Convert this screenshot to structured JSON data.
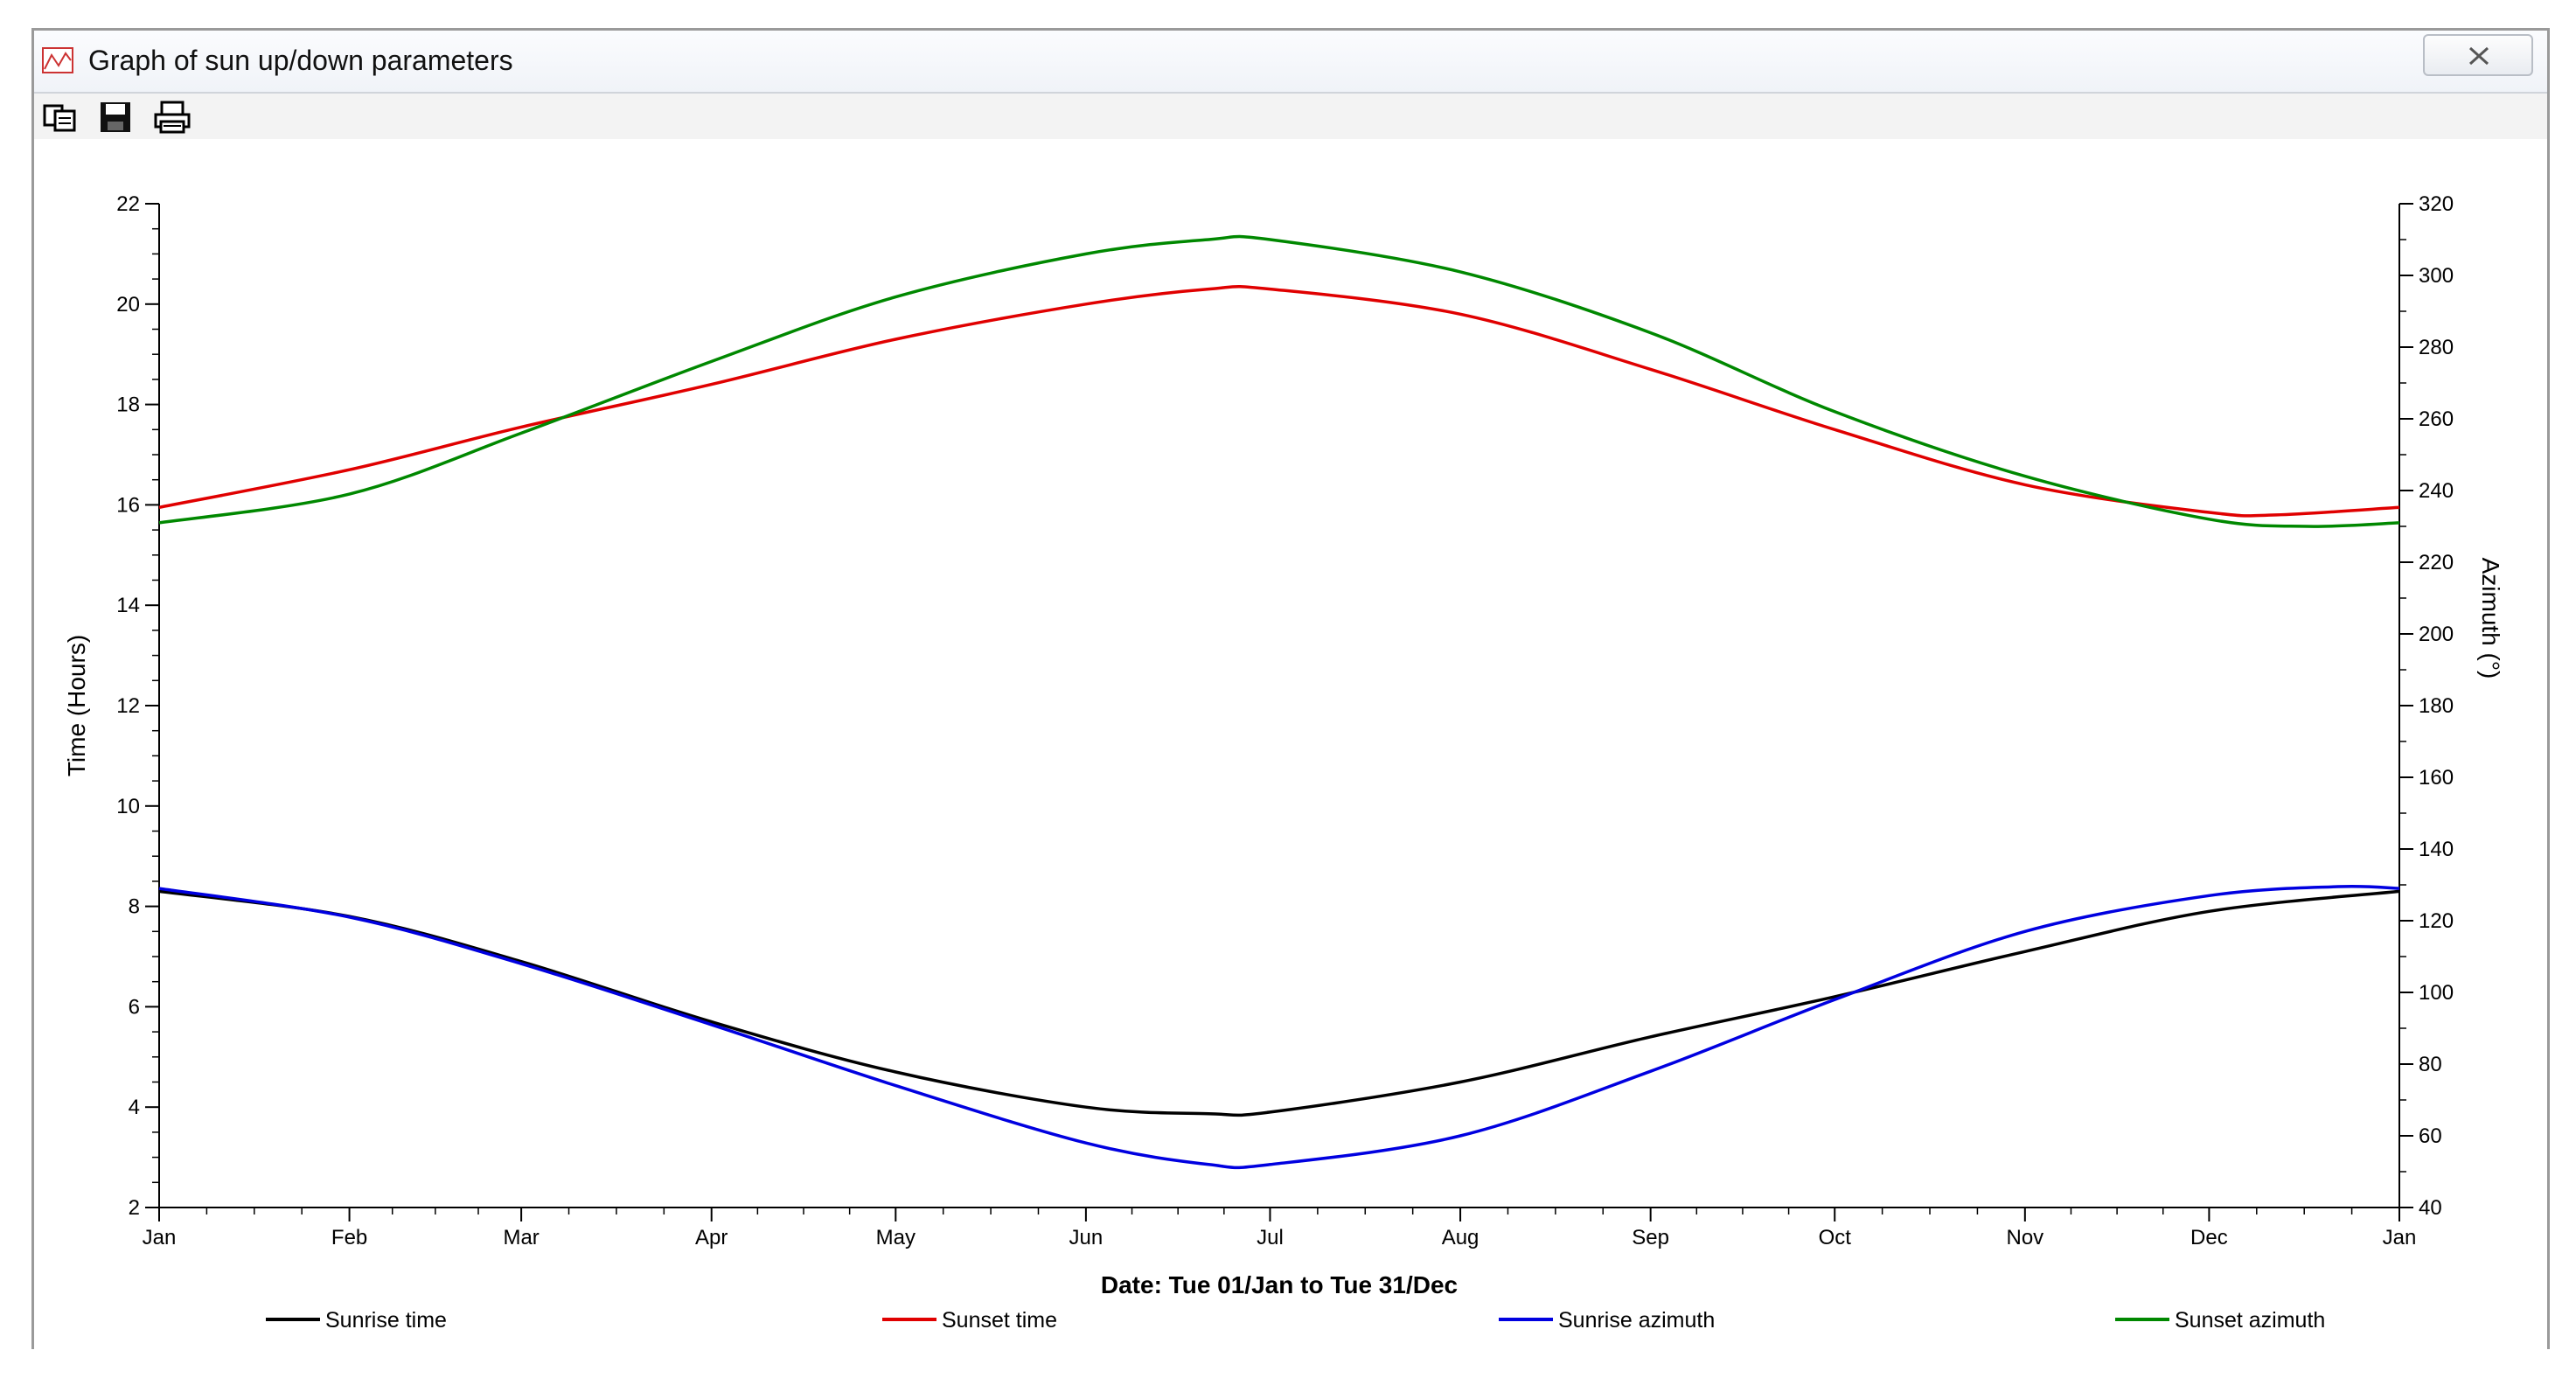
{
  "window": {
    "title": "Graph of sun up/down parameters"
  },
  "toolbar": {
    "buttons": [
      {
        "icon": "copy-icon"
      },
      {
        "icon": "save-icon"
      },
      {
        "icon": "print-icon"
      }
    ]
  },
  "colors": {
    "sunrise_time": "#000000",
    "sunset_time": "#e00000",
    "sunrise_azimuth": "#0000e0",
    "sunset_azimuth": "#008800"
  },
  "chart_data": {
    "type": "line",
    "xlabel": "Date: Tue 01/Jan to Tue 31/Dec",
    "ylabel": "Time (Hours)",
    "y2label": "Azimuth (°)",
    "x_ticks": [
      "Jan",
      "Feb",
      "Mar",
      "Apr",
      "May",
      "Jun",
      "Jul",
      "Aug",
      "Sep",
      "Oct",
      "Nov",
      "Dec",
      "Jan"
    ],
    "x_tick_days": [
      0,
      31,
      59,
      90,
      120,
      151,
      181,
      212,
      243,
      273,
      304,
      334,
      365
    ],
    "xlim": [
      0,
      365
    ],
    "ylim": [
      2,
      22
    ],
    "y_ticks": [
      2,
      4,
      6,
      8,
      10,
      12,
      14,
      16,
      18,
      20,
      22
    ],
    "y2lim": [
      40,
      320
    ],
    "y2_ticks": [
      40,
      60,
      80,
      100,
      120,
      140,
      160,
      180,
      200,
      220,
      240,
      260,
      280,
      300,
      320
    ],
    "legend_position": "bottom",
    "series": [
      {
        "name": "Sunrise time",
        "axis": "left",
        "color_key": "sunrise_time",
        "x": [
          0,
          31,
          59,
          90,
          120,
          151,
          171,
          181,
          212,
          243,
          273,
          304,
          334,
          365
        ],
        "y": [
          8.3,
          7.8,
          6.9,
          5.7,
          4.7,
          4.0,
          3.87,
          3.9,
          4.5,
          5.4,
          6.2,
          7.1,
          7.9,
          8.3
        ]
      },
      {
        "name": "Sunset time",
        "axis": "left",
        "color_key": "sunset_time",
        "x": [
          0,
          31,
          59,
          90,
          120,
          151,
          171,
          181,
          212,
          243,
          273,
          304,
          334,
          345,
          365
        ],
        "y": [
          15.95,
          16.7,
          17.55,
          18.4,
          19.3,
          20.0,
          20.3,
          20.3,
          19.8,
          18.7,
          17.5,
          16.4,
          15.85,
          15.8,
          15.95
        ]
      },
      {
        "name": "Sunrise azimuth",
        "axis": "right",
        "color_key": "sunrise_azimuth",
        "x": [
          0,
          31,
          59,
          90,
          120,
          151,
          171,
          181,
          212,
          243,
          273,
          304,
          334,
          355,
          365
        ],
        "y": [
          129,
          121,
          108,
          91,
          74,
          58,
          52,
          52,
          60,
          78,
          98,
          117,
          127,
          129.5,
          129
        ]
      },
      {
        "name": "Sunset azimuth",
        "axis": "right",
        "color_key": "sunset_azimuth",
        "x": [
          0,
          31,
          59,
          90,
          120,
          151,
          171,
          181,
          212,
          243,
          273,
          304,
          334,
          350,
          365
        ],
        "y": [
          231,
          239,
          256,
          276,
          294,
          306,
          310,
          310,
          301,
          284,
          262,
          244,
          232,
          230,
          231
        ]
      }
    ]
  }
}
